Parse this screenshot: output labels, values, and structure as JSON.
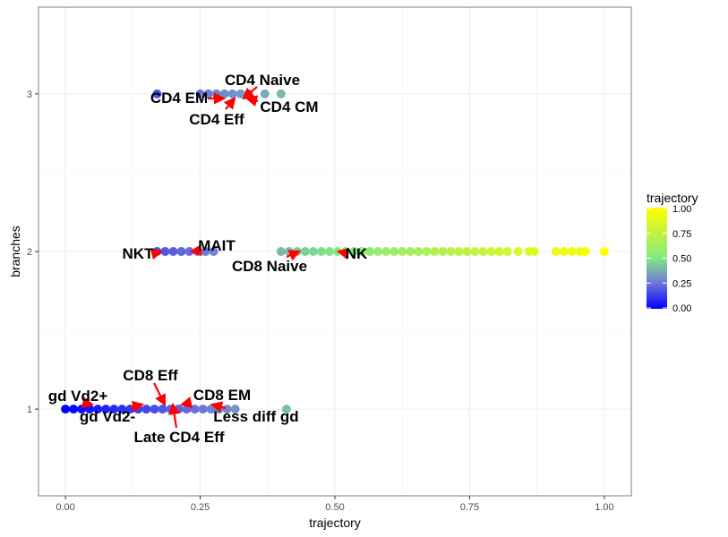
{
  "chart_data": {
    "type": "scatter",
    "title": "",
    "xlabel": "trajectory",
    "ylabel": "branches",
    "xlim": [
      -0.05,
      1.05
    ],
    "ylim": [
      0.45,
      3.55
    ],
    "x_ticks": [
      0,
      0.25,
      0.5,
      0.75,
      1
    ],
    "x_tick_labels": [
      "0.00",
      "0.25",
      "0.50",
      "0.75",
      "1.00"
    ],
    "y_ticks": [
      1,
      2,
      3
    ],
    "y_tick_labels": [
      "1",
      "2",
      "3"
    ],
    "grid": true,
    "legend": {
      "title": "trajectory",
      "position": "right",
      "ticks": [
        "1.00",
        "0.75",
        "0.50",
        "0.25",
        "0.00"
      ],
      "colors": [
        "#0000ff",
        "#6f75dd",
        "#82e882",
        "#ffff00"
      ]
    },
    "series": [
      {
        "branch": 1,
        "x": [
          0.0,
          0.015,
          0.03,
          0.045,
          0.06,
          0.075,
          0.09,
          0.105,
          0.12,
          0.135,
          0.15,
          0.165,
          0.18,
          0.195,
          0.21,
          0.225,
          0.24,
          0.255,
          0.27,
          0.285,
          0.3,
          0.315,
          0.41
        ]
      },
      {
        "branch": 2,
        "x": [
          0.17,
          0.185,
          0.2,
          0.215,
          0.23,
          0.245,
          0.26,
          0.275,
          0.4,
          0.415,
          0.43,
          0.445,
          0.46,
          0.475,
          0.49,
          0.505,
          0.52,
          0.535,
          0.55,
          0.565,
          0.58,
          0.595,
          0.61,
          0.625,
          0.64,
          0.655,
          0.67,
          0.685,
          0.7,
          0.715,
          0.73,
          0.745,
          0.76,
          0.775,
          0.79,
          0.805,
          0.82,
          0.84,
          0.86,
          0.87,
          0.91,
          0.925,
          0.94,
          0.955,
          0.965,
          1.0
        ]
      },
      {
        "branch": 3,
        "x": [
          0.17,
          0.25,
          0.265,
          0.28,
          0.295,
          0.31,
          0.325,
          0.34,
          0.37,
          0.4
        ]
      }
    ],
    "annotations": [
      {
        "label": "CD4 Naive",
        "x": 0.315,
        "y": 3
      },
      {
        "label": "CD4 EM",
        "x": 0.26,
        "y": 3
      },
      {
        "label": "CD4 Eff",
        "x": 0.31,
        "y": 3
      },
      {
        "label": "CD4 CM",
        "x": 0.34,
        "y": 3
      },
      {
        "label": "MAIT",
        "x": 0.235,
        "y": 2
      },
      {
        "label": "NKT",
        "x": 0.18,
        "y": 2
      },
      {
        "label": "CD8 Naive",
        "x": 0.44,
        "y": 2
      },
      {
        "label": "NK",
        "x": 0.505,
        "y": 2
      },
      {
        "label": "CD8 Eff",
        "x": 0.19,
        "y": 1
      },
      {
        "label": "gd Vd2+",
        "x": 0.045,
        "y": 1
      },
      {
        "label": "CD8 EM",
        "x": 0.22,
        "y": 1
      },
      {
        "label": "gd Vd2-",
        "x": 0.15,
        "y": 1
      },
      {
        "label": "Less diff gd",
        "x": 0.275,
        "y": 1
      },
      {
        "label": "Late CD4 Eff",
        "x": 0.2,
        "y": 1
      }
    ]
  }
}
